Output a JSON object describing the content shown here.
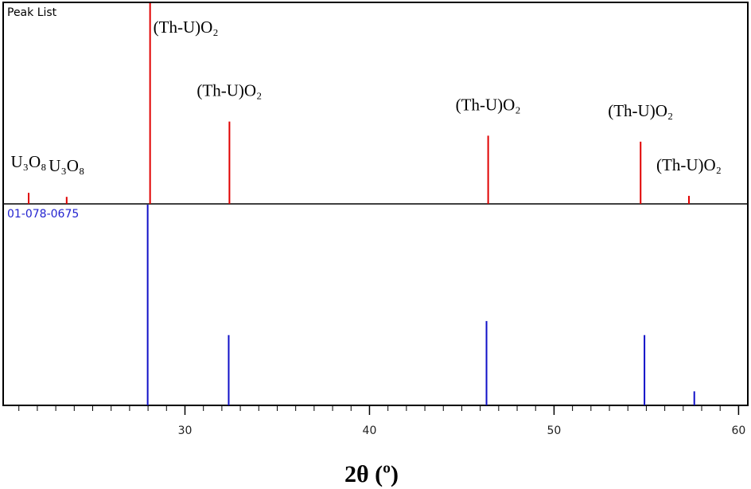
{
  "chart_data": {
    "type": "stick",
    "xlabel": "2θ (º)",
    "xlim": [
      20.15,
      60.5
    ],
    "xticks": [
      30,
      40,
      50,
      60
    ],
    "minor_tick_interval": 1,
    "panels": [
      {
        "title": "Peak List",
        "title_color": "#000000",
        "color": "#e00000",
        "ylim": [
          0,
          100
        ],
        "x": [
          21.53,
          23.59,
          28.11,
          32.41,
          46.43,
          54.69,
          57.31
        ],
        "values": [
          5.5,
          3.5,
          100,
          41,
          34,
          31,
          4
        ],
        "labels": [
          "U₃O₈",
          "U₃O₈",
          "(Th-U)O₂",
          "(Th-U)O₂",
          "(Th-U)O₂",
          "(Th-U)O₂",
          "(Th-U)O₂"
        ]
      },
      {
        "title": "01-078-0675",
        "title_color": "#2323d0",
        "color": "#1010c8",
        "ylim": [
          0,
          100
        ],
        "x": [
          27.98,
          32.37,
          46.34,
          54.9,
          57.6
        ],
        "values": [
          100,
          35,
          42,
          35,
          7
        ]
      }
    ]
  }
}
